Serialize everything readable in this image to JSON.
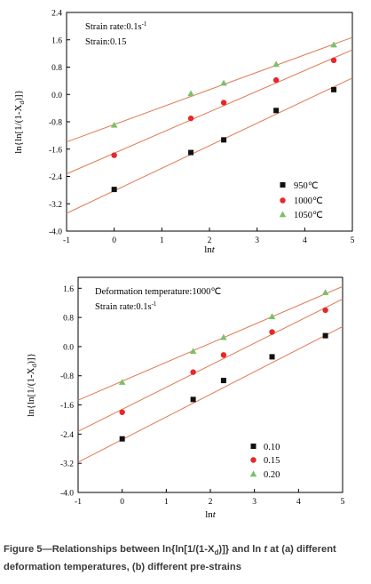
{
  "chart_data": [
    {
      "type": "scatter",
      "annotation": [
        "Strain rate:0.1s",
        "-1",
        "Strain:0.15"
      ],
      "xlabel": [
        "ln",
        "t"
      ],
      "ylabel": [
        "ln{ln[1/(1-X",
        "d",
        ")]}"
      ],
      "xlim": [
        -1,
        5
      ],
      "ylim": [
        -4.0,
        2.4
      ],
      "x_ticks": [
        "-1",
        "0",
        "1",
        "2",
        "3",
        "4",
        "5"
      ],
      "y_ticks": [
        "-4.0",
        "-3.2",
        "-2.4",
        "-1.6",
        "-0.8",
        "0.0",
        "0.8",
        "1.6",
        "2.4"
      ],
      "legend_position": "bottom-right",
      "fit_line_color": "#e07b52",
      "series": [
        {
          "name": "950℃",
          "marker": "square",
          "color": "#111111",
          "x": [
            0.0,
            1.61,
            2.3,
            3.4,
            4.61
          ],
          "y": [
            -2.78,
            -1.7,
            -1.33,
            -0.47,
            0.14
          ],
          "fit": {
            "slope": 0.66,
            "intercept": -2.82
          }
        },
        {
          "name": "1000℃",
          "marker": "circle",
          "color": "#e8262b",
          "x": [
            0.0,
            1.61,
            2.3,
            3.4,
            4.61
          ],
          "y": [
            -1.78,
            -0.7,
            -0.24,
            0.42,
            1.0
          ],
          "fit": {
            "slope": 0.605,
            "intercept": -1.72
          }
        },
        {
          "name": "1050℃",
          "marker": "triangle",
          "color": "#7cc06a",
          "x": [
            0.0,
            1.61,
            2.3,
            3.4,
            4.61
          ],
          "y": [
            -0.9,
            0.02,
            0.33,
            0.88,
            1.45
          ],
          "fit": {
            "slope": 0.51,
            "intercept": -0.88
          }
        }
      ]
    },
    {
      "type": "scatter",
      "annotation": [
        "Deformation temperature:1000℃",
        "Strain rate:0.1s",
        "-1"
      ],
      "xlabel": [
        "ln",
        "t"
      ],
      "ylabel": [
        "ln{ln[1/(1-X",
        "d",
        ")]}"
      ],
      "xlim": [
        -1,
        5
      ],
      "ylim": [
        -4.0,
        1.9
      ],
      "x_ticks": [
        "-1",
        "0",
        "1",
        "2",
        "3",
        "4",
        "5"
      ],
      "y_ticks": [
        "-4.0",
        "-3.2",
        "-2.4",
        "-1.6",
        "-0.8",
        "0.0",
        "0.8",
        "1.6"
      ],
      "legend_position": "bottom-right",
      "fit_line_color": "#e07b52",
      "series": [
        {
          "name": "0.10",
          "marker": "square",
          "color": "#111111",
          "x": [
            0.0,
            1.61,
            2.3,
            3.4,
            4.61
          ],
          "y": [
            -2.53,
            -1.45,
            -0.93,
            -0.28,
            0.3
          ],
          "fit": {
            "slope": 0.62,
            "intercept": -2.55
          }
        },
        {
          "name": "0.15",
          "marker": "circle",
          "color": "#e8262b",
          "x": [
            0.0,
            1.61,
            2.3,
            3.4,
            4.61
          ],
          "y": [
            -1.8,
            -0.7,
            -0.23,
            0.4,
            1.0
          ],
          "fit": {
            "slope": 0.605,
            "intercept": -1.72
          }
        },
        {
          "name": "0.20",
          "marker": "triangle",
          "color": "#7cc06a",
          "x": [
            0.0,
            1.61,
            2.3,
            3.4,
            4.61
          ],
          "y": [
            -0.98,
            -0.13,
            0.25,
            0.82,
            1.48
          ],
          "fit": {
            "slope": 0.52,
            "intercept": -0.95
          }
        }
      ]
    }
  ],
  "caption": {
    "line1_a": "Figure 5—Relationships between ln{ln[1/(1-X",
    "line1_sub": "d",
    "line1_b": ")]} and ln ",
    "line1_italic": "t",
    "line1_c": " at (a) different",
    "line2": "deformation temperatures, (b) different pre-strains"
  }
}
